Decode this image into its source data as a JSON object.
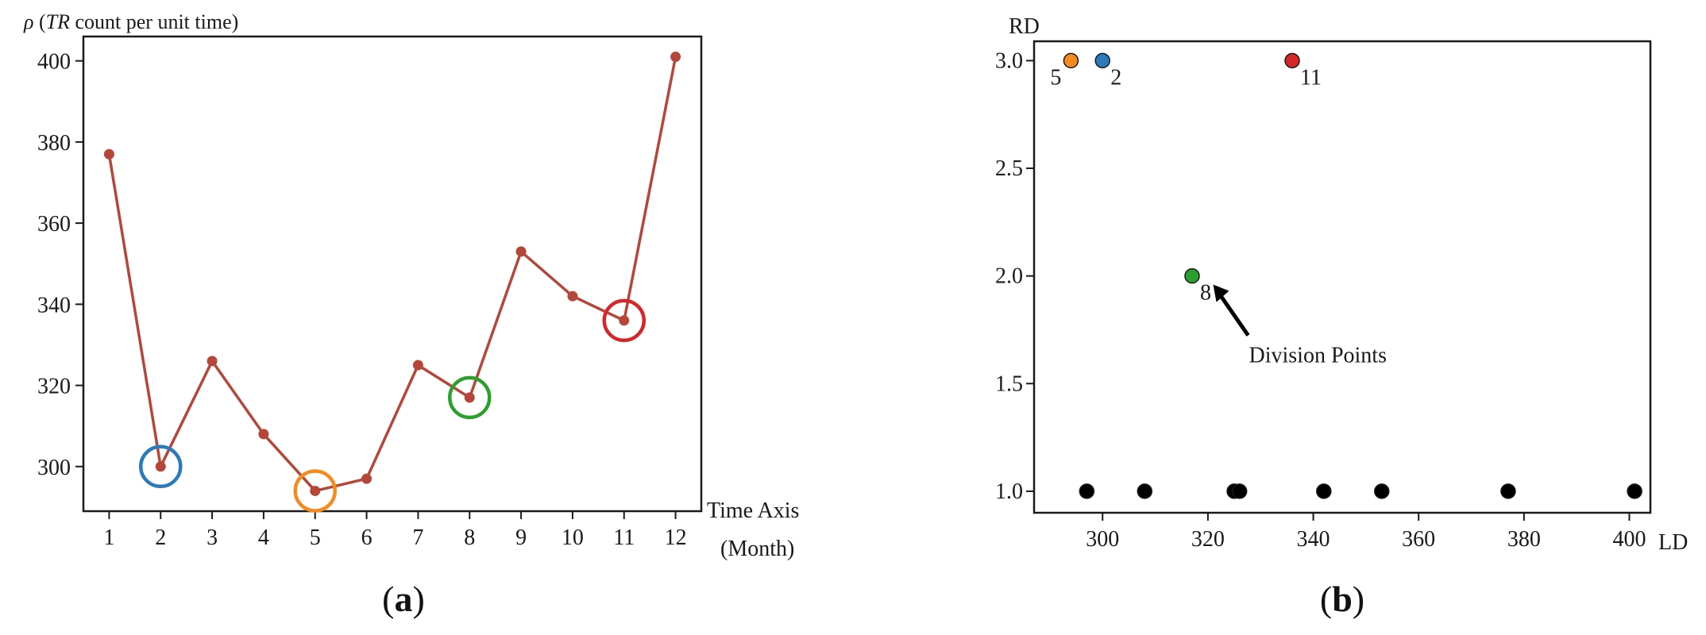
{
  "chart_data": [
    {
      "type": "line",
      "panel_label": "(a)",
      "ylabel": "ρ (TR count per unit time)",
      "xlabel_line1": "Time Axis",
      "xlabel_line2": "(Month)",
      "x": [
        1,
        2,
        3,
        4,
        5,
        6,
        7,
        8,
        9,
        10,
        11,
        12
      ],
      "y": [
        377,
        300,
        326,
        308,
        294,
        297,
        325,
        317,
        353,
        342,
        336,
        401
      ],
      "xlim": [
        0.5,
        12.5
      ],
      "ylim": [
        289,
        406
      ],
      "yticks": [
        300,
        320,
        340,
        360,
        380,
        400
      ],
      "xticks": [
        1,
        2,
        3,
        4,
        5,
        6,
        7,
        8,
        9,
        10,
        11,
        12
      ],
      "line_color": "#b5473a",
      "highlights": [
        {
          "x": 2,
          "y": 300,
          "color": "#2b7bba"
        },
        {
          "x": 5,
          "y": 294,
          "color": "#f58b1f"
        },
        {
          "x": 8,
          "y": 317,
          "color": "#2ca02c"
        },
        {
          "x": 11,
          "y": 336,
          "color": "#d62728"
        }
      ]
    },
    {
      "type": "scatter",
      "panel_label": "(b)",
      "xlabel": "LD",
      "ylabel": "RD",
      "xlim": [
        287,
        404
      ],
      "ylim": [
        0.9,
        3.09
      ],
      "xticks": [
        300,
        320,
        340,
        360,
        380,
        400
      ],
      "yticks": [
        "1.0",
        "1.5",
        "2.0",
        "2.5",
        "3.0"
      ],
      "points": [
        {
          "x": 294,
          "y": 3.0,
          "color": "#f58b1f",
          "label": "5"
        },
        {
          "x": 300,
          "y": 3.0,
          "color": "#2b7bba",
          "label": "2"
        },
        {
          "x": 336,
          "y": 3.0,
          "color": "#d62728",
          "label": "11"
        },
        {
          "x": 317,
          "y": 2.0,
          "color": "#2ca02c",
          "label": "8"
        },
        {
          "x": 297,
          "y": 1.0,
          "color": "#000000",
          "label": ""
        },
        {
          "x": 308,
          "y": 1.0,
          "color": "#000000",
          "label": ""
        },
        {
          "x": 325,
          "y": 1.0,
          "color": "#000000",
          "label": ""
        },
        {
          "x": 326,
          "y": 1.0,
          "color": "#000000",
          "label": ""
        },
        {
          "x": 342,
          "y": 1.0,
          "color": "#000000",
          "label": ""
        },
        {
          "x": 353,
          "y": 1.0,
          "color": "#000000",
          "label": ""
        },
        {
          "x": 377,
          "y": 1.0,
          "color": "#000000",
          "label": ""
        },
        {
          "x": 401,
          "y": 1.0,
          "color": "#000000",
          "label": ""
        }
      ],
      "annotation": {
        "text": "Division Points",
        "target_x": 321,
        "target_y": 1.96
      }
    }
  ]
}
